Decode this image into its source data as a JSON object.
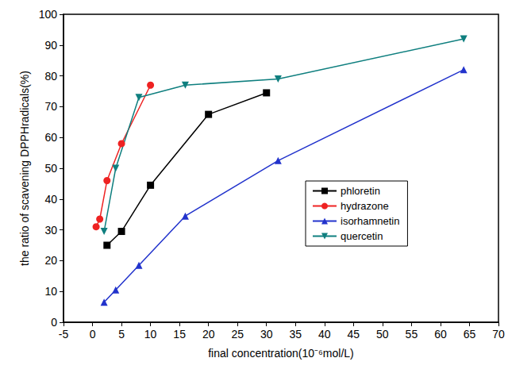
{
  "chart_data": {
    "type": "line",
    "x_label": "final concentration(10⁻⁶mol/L)",
    "y_label": "the ratio of scavening DPPHradicals(%)",
    "xlim": [
      -5,
      70
    ],
    "xticks": [
      -5,
      0,
      5,
      10,
      15,
      20,
      25,
      30,
      35,
      40,
      45,
      50,
      55,
      60,
      65,
      70
    ],
    "ylim": [
      0,
      100
    ],
    "yticks": [
      0,
      10,
      20,
      30,
      40,
      50,
      60,
      70,
      80,
      90,
      100
    ],
    "grid": false,
    "legend": "right",
    "series": [
      {
        "name": "phloretin",
        "color": "#000000",
        "marker": "square",
        "line_style": "solid",
        "x": [
          2.5,
          5,
          10,
          20,
          30
        ],
        "values": [
          25,
          29.5,
          44.5,
          67.5,
          74.5
        ]
      },
      {
        "name": "hydrazone",
        "color": "#ee2222",
        "marker": "circle",
        "line_style": "solid",
        "x": [
          0.625,
          1.25,
          2.5,
          5,
          10
        ],
        "values": [
          31,
          33.5,
          46,
          58,
          77
        ]
      },
      {
        "name": "isorhamnetin",
        "color": "#2233cc",
        "marker": "triangle",
        "line_style": "solid",
        "x": [
          2,
          4,
          8,
          16,
          32,
          64
        ],
        "values": [
          6.5,
          10.5,
          18.5,
          34.5,
          52.5,
          82
        ]
      },
      {
        "name": "quercetin",
        "color": "#0f7f7f",
        "marker": "triangle-down",
        "line_style": "solid",
        "x": [
          2,
          4,
          8,
          16,
          32,
          64
        ],
        "values": [
          29.5,
          50,
          73,
          77,
          79,
          92
        ]
      }
    ]
  }
}
